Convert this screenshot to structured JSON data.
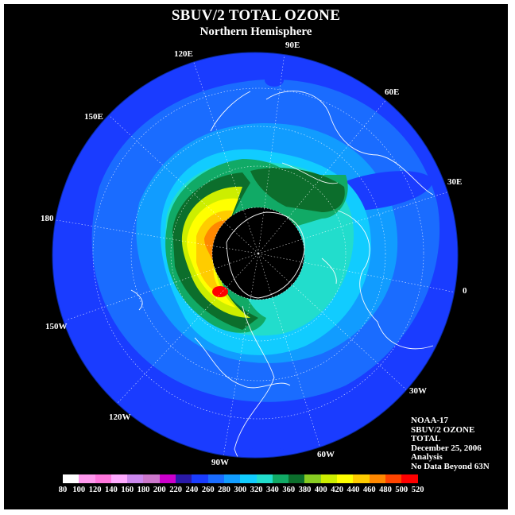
{
  "header": {
    "title": "SBUV/2 TOTAL OZONE",
    "subtitle": "Northern Hemisphere"
  },
  "longitude_labels": [
    "90E",
    "60E",
    "30E",
    "0",
    "30W",
    "60W",
    "90W",
    "120W",
    "150W",
    "180",
    "150E",
    "120E"
  ],
  "info": {
    "lines": [
      "NOAA-17",
      "SBUV/2 OZONE",
      "TOTAL",
      "December 25, 2006",
      "Analysis",
      "No Data Beyond 63N"
    ]
  },
  "colorbar": {
    "labels": [
      "80",
      "100",
      "120",
      "140",
      "160",
      "180",
      "200",
      "220",
      "240",
      "260",
      "280",
      "300",
      "320",
      "340",
      "360",
      "380",
      "400",
      "420",
      "440",
      "460",
      "480",
      "500",
      "520"
    ],
    "colors": [
      "#ffffff",
      "#ff99ee",
      "#ff77dd",
      "#ffaaff",
      "#cc88ee",
      "#cc77cc",
      "#cc00cc",
      "#2a1aa8",
      "#1a3cff",
      "#1a6cff",
      "#119cff",
      "#11ccff",
      "#22ddcc",
      "#11aa66",
      "#0c6e2c",
      "#88cc22",
      "#ccee00",
      "#ffff00",
      "#ffcc00",
      "#ff8800",
      "#ff4400",
      "#ff0000",
      "#886655"
    ]
  }
}
